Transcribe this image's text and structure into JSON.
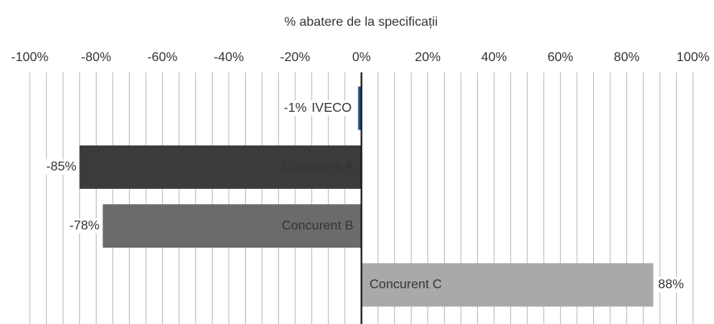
{
  "chart_data": {
    "type": "hbar",
    "title": "% abatere de la specificații",
    "categories": [
      "IVECO",
      "Concurent A",
      "Concurent B",
      "Concurent C"
    ],
    "values": [
      -1,
      -85,
      -78,
      88
    ],
    "value_labels": [
      "-1%",
      "-85%",
      "-78%",
      "88%"
    ],
    "colors": [
      "#1f4e8c",
      "#3b3b3b",
      "#6b6b6d",
      "#a9a9ab"
    ],
    "xlim": [
      -100,
      100
    ],
    "xticks": [
      {
        "value": -100,
        "label": "-100%"
      },
      {
        "value": -80,
        "label": "-80%"
      },
      {
        "value": -60,
        "label": "-60%"
      },
      {
        "value": -40,
        "label": "-40%"
      },
      {
        "value": -20,
        "label": "-20%"
      },
      {
        "value": 0,
        "label": "0%"
      },
      {
        "value": 20,
        "label": "20%"
      },
      {
        "value": 40,
        "label": "40%"
      },
      {
        "value": 60,
        "label": "60%"
      },
      {
        "value": 80,
        "label": "80%"
      },
      {
        "value": 100,
        "label": "100%"
      }
    ],
    "xminorticks": [
      -95,
      -90,
      -85,
      -75,
      -70,
      -65,
      -55,
      -50,
      -45,
      -35,
      -30,
      -25,
      -15,
      -10,
      -5,
      5,
      10,
      15,
      25,
      30,
      35,
      45,
      50,
      55,
      65,
      70,
      75,
      85,
      90,
      95
    ],
    "grid": true,
    "xaxis_position": "top"
  }
}
